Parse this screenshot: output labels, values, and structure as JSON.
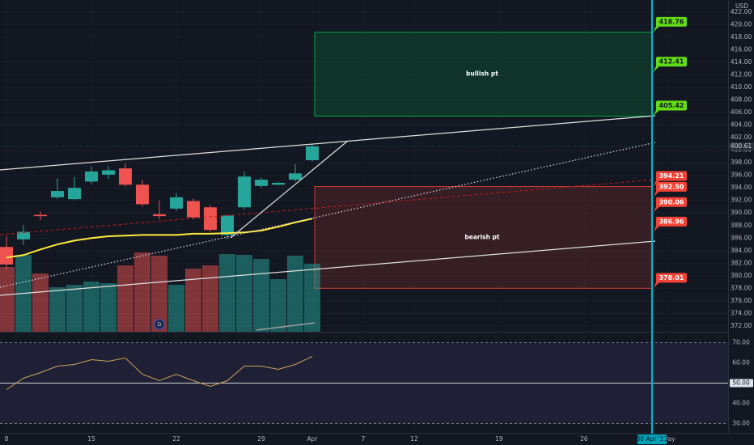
{
  "chart_data": {
    "type": "candlestick",
    "currency": "USD",
    "xlim": [
      -0.38,
      42.48
    ],
    "ylim": [
      371.1,
      423.9
    ],
    "yticks": [
      {
        "value": 372,
        "label": "372.00"
      },
      {
        "value": 374,
        "label": "374.00"
      },
      {
        "value": 376,
        "label": "376.00"
      },
      {
        "value": 378,
        "label": "378.00"
      },
      {
        "value": 380,
        "label": "380.00"
      },
      {
        "value": 382,
        "label": "382.00"
      },
      {
        "value": 384,
        "label": "384.00"
      },
      {
        "value": 386,
        "label": "386.00"
      },
      {
        "value": 388,
        "label": "388.00"
      },
      {
        "value": 390,
        "label": "390.00"
      },
      {
        "value": 392,
        "label": "392.00"
      },
      {
        "value": 394,
        "label": "394.00"
      },
      {
        "value": 396,
        "label": "396.00"
      },
      {
        "value": 398,
        "label": "398.00"
      },
      {
        "value": 400,
        "label": "400.00"
      },
      {
        "value": 402,
        "label": "402.00"
      },
      {
        "value": 404,
        "label": "404.00"
      },
      {
        "value": 406,
        "label": "406.00"
      },
      {
        "value": 408,
        "label": "408.00"
      },
      {
        "value": 410,
        "label": "410.00"
      },
      {
        "value": 412,
        "label": "412.00"
      },
      {
        "value": 414,
        "label": "414.00"
      },
      {
        "value": 416,
        "label": "416.00"
      },
      {
        "value": 418,
        "label": "418.00"
      },
      {
        "value": 420,
        "label": "420.00"
      },
      {
        "value": 422,
        "label": "422.00"
      }
    ],
    "xticks": [
      {
        "value": 0,
        "label": "8"
      },
      {
        "value": 5,
        "label": "15"
      },
      {
        "value": 10,
        "label": "22"
      },
      {
        "value": 15,
        "label": "29"
      },
      {
        "value": 18,
        "label": "Apr"
      },
      {
        "value": 21,
        "label": "7"
      },
      {
        "value": 24,
        "label": "12"
      },
      {
        "value": 29,
        "label": "19"
      },
      {
        "value": 34,
        "label": "26"
      },
      {
        "value": 39,
        "label": "May"
      }
    ],
    "up_color": "#26a69a",
    "down_color": "#ef5350",
    "candles": {
      "open": [
        384.6,
        385.8,
        389.7,
        392.5,
        392.2,
        395.0,
        396.1,
        397.1,
        394.5,
        389.8,
        390.7,
        391.9,
        390.9,
        386.5,
        390.9,
        394.3,
        394.5,
        395.3,
        398.4
      ],
      "high": [
        386.3,
        388.1,
        390.2,
        395.5,
        395.7,
        397.4,
        397.5,
        397.9,
        395.3,
        392.0,
        393.2,
        392.3,
        391.3,
        389.8,
        396.6,
        395.6,
        395.0,
        397.8,
        400.9
      ],
      "low": [
        381.0,
        384.9,
        388.9,
        392.2,
        392.0,
        394.6,
        395.4,
        394.2,
        391.0,
        389.0,
        390.3,
        389.0,
        387.0,
        385.8,
        390.6,
        394.0,
        394.4,
        395.0,
        398.2
      ],
      "close": [
        381.8,
        387.0,
        389.5,
        393.5,
        394.0,
        396.6,
        396.8,
        394.5,
        391.4,
        389.5,
        392.5,
        389.3,
        387.3,
        389.6,
        395.8,
        395.3,
        394.8,
        396.3,
        400.61
      ]
    },
    "volume": {
      "ylim": [
        0,
        410
      ],
      "values": [
        80,
        95,
        72,
        55,
        58,
        62,
        60,
        82,
        98,
        94,
        58,
        78,
        82,
        96,
        95,
        90,
        65,
        94,
        84
      ]
    },
    "moving_average": {
      "color": "#ffeb3b",
      "values": [
        382.9,
        383.3,
        384.2,
        385.0,
        385.6,
        386.0,
        386.3,
        386.4,
        386.5,
        386.5,
        386.5,
        386.7,
        386.7,
        386.8,
        386.9,
        387.2,
        387.8,
        388.5,
        389.1
      ]
    },
    "zones": [
      {
        "label": "bullish pt",
        "top": 418.76,
        "bottom": 405.42,
        "color": "#00c853"
      },
      {
        "label": "bearish pt",
        "top": 394.21,
        "bottom": 378.01,
        "color": "#f44336"
      }
    ],
    "price_labels": [
      {
        "value": 418.76,
        "color": "#64dd17"
      },
      {
        "value": 412.41,
        "color": "#64dd17"
      },
      {
        "value": 405.42,
        "color": "#64dd17"
      },
      {
        "value": 394.21,
        "color": "#f44336"
      },
      {
        "value": 392.5,
        "label": "392.50",
        "color": "#f44336"
      },
      {
        "value": 390.06,
        "color": "#f44336"
      },
      {
        "value": 386.96,
        "color": "#f44336"
      },
      {
        "value": 378.01,
        "color": "#f44336"
      }
    ],
    "vline": {
      "value": 38,
      "label": "30 Apr '21",
      "color": "#00bcd4"
    },
    "events": [
      {
        "x": 9,
        "label": "D"
      }
    ],
    "rsi": {
      "color": "#c9a55c",
      "ylim": [
        25.4,
        73
      ],
      "yticks": [
        {
          "value": 30,
          "label": "30.00"
        },
        {
          "value": 40,
          "label": "40.00"
        },
        {
          "value": 50,
          "label": "50.00"
        },
        {
          "value": 60,
          "label": "60.00"
        },
        {
          "value": 70,
          "label": "70.00"
        }
      ],
      "values": [
        46.8,
        52.4,
        55.2,
        58.4,
        59.2,
        61.6,
        60.8,
        62.4,
        54.4,
        51.2,
        54.4,
        51.2,
        48.4,
        51.2,
        58.4,
        58.4,
        56.8,
        59.2,
        63.2
      ]
    }
  }
}
